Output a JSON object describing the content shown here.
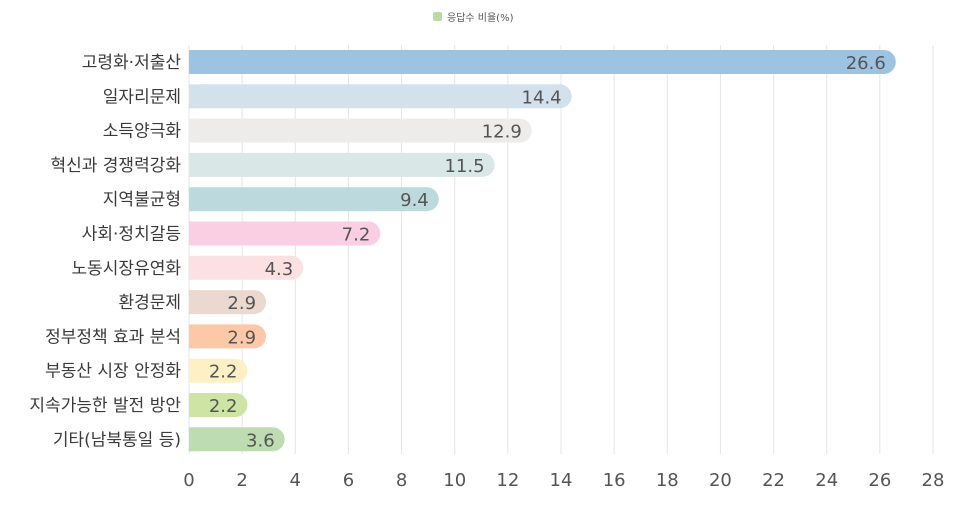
{
  "chart_data": {
    "type": "bar",
    "orientation": "horizontal",
    "legend": {
      "label": "응답수 비율(%)",
      "color": "#b9dba1",
      "placement": "top-center"
    },
    "categories": [
      "고령화·저출산",
      "일자리문제",
      "소득양극화",
      "혁신과 경쟁력강화",
      "지역불균형",
      "사회·정치갈등",
      "노동시장유연화",
      "환경문제",
      "정부정책 효과 분석",
      "부동산 시장 안정화",
      "지속가능한 발전 방안",
      "기타(남북통일 등)"
    ],
    "values": [
      26.6,
      14.4,
      12.9,
      11.5,
      9.4,
      7.2,
      4.3,
      2.9,
      2.9,
      2.2,
      2.2,
      3.6
    ],
    "value_labels": [
      "26.6",
      "14.4",
      "12.9",
      "11.5",
      "9.4",
      "7.2",
      "4.3",
      "2.9",
      "2.9",
      "2.2",
      "2.2",
      "3.6"
    ],
    "bar_colors": [
      "#9dc3e0",
      "#d3e1ec",
      "#eeecea",
      "#d9e7e7",
      "#bcdadd",
      "#fbcfe3",
      "#fce0e2",
      "#ebd9cf",
      "#fdc8a8",
      "#fdf0c4",
      "#cee4a4",
      "#bddcb1"
    ],
    "xlim": [
      0,
      28
    ],
    "xticks": [
      "0",
      "2",
      "4",
      "6",
      "8",
      "10",
      "12",
      "14",
      "16",
      "18",
      "20",
      "22",
      "24",
      "26",
      "28"
    ],
    "grid": "vertical",
    "title": "",
    "xlabel": "",
    "ylabel": ""
  }
}
